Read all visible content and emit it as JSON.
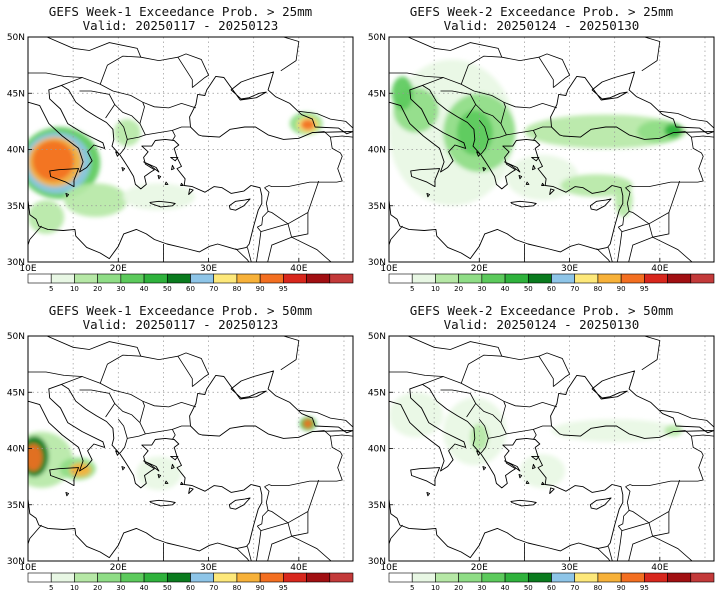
{
  "panels": [
    {
      "title": "GEFS Week-1 Exceedance Prob. > 25mm",
      "valid": "Valid: 20250117 - 20250123",
      "blobs": [
        {
          "lon": 13.5,
          "lat": 38.8,
          "rx": 4.5,
          "ry": 3.2,
          "level": 30
        },
        {
          "lon": 13.2,
          "lat": 38.8,
          "rx": 3.7,
          "ry": 2.7,
          "level": 60
        },
        {
          "lon": 13.0,
          "lat": 38.9,
          "rx": 3.0,
          "ry": 2.2,
          "level": 80
        },
        {
          "lon": 12.8,
          "lat": 39.0,
          "rx": 2.3,
          "ry": 1.8,
          "level": 90
        },
        {
          "lon": 40.8,
          "lat": 42.3,
          "rx": 1.8,
          "ry": 1.0,
          "level": 20
        },
        {
          "lon": 41.0,
          "lat": 42.2,
          "rx": 1.2,
          "ry": 0.7,
          "level": 70
        },
        {
          "lon": 41.0,
          "lat": 42.2,
          "rx": 0.8,
          "ry": 0.5,
          "level": 90
        },
        {
          "lon": 17.5,
          "lat": 35.5,
          "rx": 3.5,
          "ry": 1.5,
          "level": 10
        },
        {
          "lon": 24.5,
          "lat": 35.8,
          "rx": 4.0,
          "ry": 1.2,
          "level": 5
        },
        {
          "lon": 12.0,
          "lat": 34.0,
          "rx": 2.0,
          "ry": 1.5,
          "level": 10
        },
        {
          "lon": 21.0,
          "lat": 41.5,
          "rx": 1.5,
          "ry": 1.2,
          "level": 10
        }
      ]
    },
    {
      "title": "GEFS Week-2 Exceedance Prob. > 25mm",
      "valid": "Valid: 20250124 - 20250130",
      "blobs": [
        {
          "lon": 17.0,
          "lat": 41.5,
          "rx": 7.0,
          "ry": 6.5,
          "level": 5
        },
        {
          "lon": 20.0,
          "lat": 41.5,
          "rx": 4.0,
          "ry": 3.5,
          "level": 20
        },
        {
          "lon": 19.5,
          "lat": 41.5,
          "rx": 2.0,
          "ry": 2.0,
          "level": 30
        },
        {
          "lon": 13.0,
          "lat": 43.5,
          "rx": 2.5,
          "ry": 2.0,
          "level": 20
        },
        {
          "lon": 11.5,
          "lat": 45.0,
          "rx": 1.2,
          "ry": 1.5,
          "level": 30
        },
        {
          "lon": 34.0,
          "lat": 41.6,
          "rx": 9.0,
          "ry": 1.5,
          "level": 10
        },
        {
          "lon": 40.0,
          "lat": 41.6,
          "rx": 2.5,
          "ry": 1.0,
          "level": 20
        },
        {
          "lon": 41.5,
          "lat": 41.7,
          "rx": 1.0,
          "ry": 0.6,
          "level": 40
        },
        {
          "lon": 27.0,
          "lat": 37.5,
          "rx": 4.0,
          "ry": 2.0,
          "level": 5
        },
        {
          "lon": 33.0,
          "lat": 36.8,
          "rx": 4.0,
          "ry": 1.0,
          "level": 10
        },
        {
          "lon": 36.0,
          "lat": 35.5,
          "rx": 1.0,
          "ry": 1.5,
          "level": 10
        }
      ]
    },
    {
      "title": "GEFS Week-1 Exceedance Prob. > 50mm",
      "valid": "Valid: 20250117 - 20250123",
      "blobs": [
        {
          "lon": 11.5,
          "lat": 39.0,
          "rx": 3.5,
          "ry": 2.5,
          "level": 10
        },
        {
          "lon": 10.7,
          "lat": 39.3,
          "rx": 1.6,
          "ry": 1.8,
          "level": 50
        },
        {
          "lon": 10.6,
          "lat": 39.2,
          "rx": 1.0,
          "ry": 1.2,
          "level": 90
        },
        {
          "lon": 15.5,
          "lat": 38.2,
          "rx": 2.0,
          "ry": 1.0,
          "level": 20
        },
        {
          "lon": 15.8,
          "lat": 38.1,
          "rx": 1.2,
          "ry": 0.6,
          "level": 80
        },
        {
          "lon": 41.0,
          "lat": 42.2,
          "rx": 0.9,
          "ry": 0.6,
          "level": 40
        },
        {
          "lon": 41.0,
          "lat": 42.2,
          "rx": 0.5,
          "ry": 0.4,
          "level": 90
        },
        {
          "lon": 24.5,
          "lat": 37.8,
          "rx": 2.5,
          "ry": 1.5,
          "level": 5
        }
      ]
    },
    {
      "title": "GEFS Week-2 Exceedance Prob. > 50mm",
      "valid": "Valid: 20250124 - 20250130",
      "blobs": [
        {
          "lon": 19.5,
          "lat": 41.5,
          "rx": 3.5,
          "ry": 3.0,
          "level": 5
        },
        {
          "lon": 13.0,
          "lat": 43.0,
          "rx": 3.0,
          "ry": 2.0,
          "level": 5
        },
        {
          "lon": 20.0,
          "lat": 41.0,
          "rx": 1.0,
          "ry": 1.2,
          "level": 10
        },
        {
          "lon": 35.0,
          "lat": 41.6,
          "rx": 7.0,
          "ry": 1.0,
          "level": 5
        },
        {
          "lon": 41.5,
          "lat": 41.6,
          "rx": 1.0,
          "ry": 0.5,
          "level": 10
        },
        {
          "lon": 27.0,
          "lat": 38.0,
          "rx": 2.5,
          "ry": 1.5,
          "level": 5
        }
      ]
    }
  ],
  "map": {
    "lon_range": [
      10,
      46
    ],
    "lat_range": [
      30,
      50
    ],
    "lat_ticks": [
      "50N",
      "45N",
      "40N",
      "35N",
      "30N"
    ],
    "lon_ticks": [
      "10E",
      "20E",
      "30E",
      "40E"
    ]
  },
  "colorbar": {
    "levels": [
      "5",
      "10",
      "20",
      "30",
      "40",
      "50",
      "60",
      "70",
      "80",
      "90",
      "95"
    ],
    "colors": [
      "#ffffff",
      "#e8f7e4",
      "#b6e8a6",
      "#8fdd86",
      "#5cca5c",
      "#2fb23c",
      "#0a7b1e",
      "#8ec5e8",
      "#fde87a",
      "#f7b139",
      "#f36f21",
      "#d8271d",
      "#a10f12",
      "#c33a3a"
    ]
  }
}
